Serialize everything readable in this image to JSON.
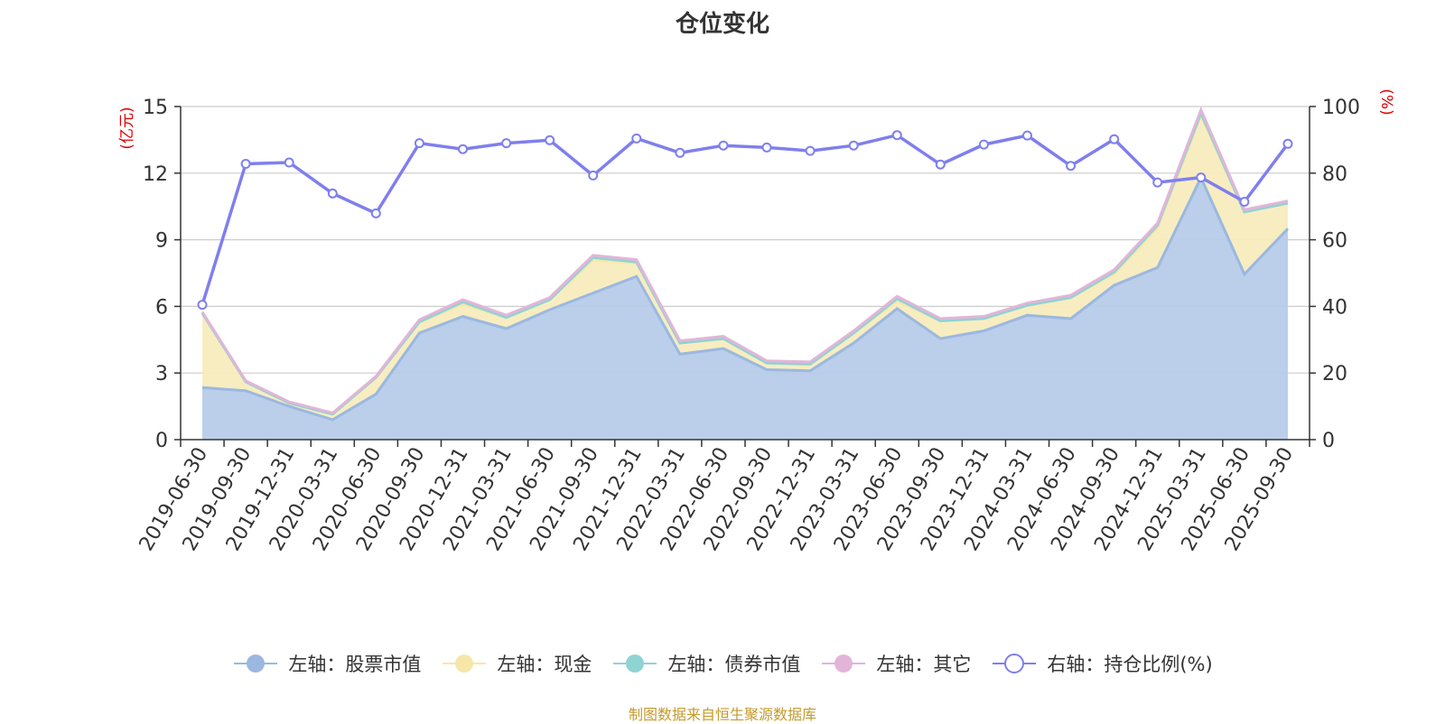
{
  "chart_data": {
    "type": "area",
    "title": "仓位变化",
    "left_axis_label": "(亿元)",
    "right_axis_label": "(%)",
    "left_ylim": [
      0,
      15
    ],
    "left_ticks": [
      "0",
      "3",
      "6",
      "9",
      "12",
      "15"
    ],
    "right_ylim": [
      0,
      100
    ],
    "right_ticks": [
      "0",
      "20",
      "40",
      "60",
      "80",
      "100"
    ],
    "grid": true,
    "legend_position": "bottom",
    "categories": [
      "2019-06-30",
      "2019-09-30",
      "2019-12-31",
      "2020-03-31",
      "2020-06-30",
      "2020-09-30",
      "2020-12-31",
      "2021-03-31",
      "2021-06-30",
      "2021-09-30",
      "2021-12-31",
      "2022-03-31",
      "2022-06-30",
      "2022-09-30",
      "2022-12-31",
      "2023-03-31",
      "2023-06-30",
      "2023-09-30",
      "2023-12-31",
      "2024-03-31",
      "2024-06-30",
      "2024-09-30",
      "2024-12-31",
      "2025-03-31",
      "2025-06-30",
      "2025-09-30"
    ],
    "series": [
      {
        "name": "左轴：股票市值",
        "axis": "left",
        "kind": "area",
        "color": "#9bb8e0",
        "fill": "#b7cbe9",
        "values": [
          2.35,
          2.2,
          1.5,
          0.9,
          2.05,
          4.8,
          5.55,
          5.0,
          5.85,
          6.6,
          7.35,
          3.85,
          4.1,
          3.15,
          3.1,
          4.35,
          5.9,
          4.55,
          4.9,
          5.6,
          5.45,
          6.95,
          7.75,
          11.8,
          7.45,
          9.5
        ]
      },
      {
        "name": "左轴：现金",
        "axis": "left",
        "kind": "area",
        "color": "#f6e7a8",
        "fill": "#f8ecbd",
        "values": [
          3.35,
          0.4,
          0.15,
          0.25,
          0.75,
          0.5,
          0.55,
          0.5,
          0.45,
          1.5,
          0.6,
          0.5,
          0.45,
          0.3,
          0.3,
          0.45,
          0.35,
          0.8,
          0.55,
          0.45,
          0.95,
          0.5,
          1.8,
          2.8,
          2.8,
          1.15
        ]
      },
      {
        "name": "左轴：债券市值",
        "axis": "left",
        "kind": "area",
        "color": "#8fd3d3",
        "fill": "#a6ddda",
        "values": [
          0.0,
          0.0,
          0.0,
          0.0,
          0.0,
          0.0,
          0.1,
          0.0,
          0.0,
          0.1,
          0.05,
          0.0,
          0.0,
          0.0,
          0.0,
          0.0,
          0.1,
          0.0,
          0.0,
          0.0,
          0.0,
          0.1,
          0.1,
          0.1,
          0.0,
          0.0
        ]
      },
      {
        "name": "左轴：其它",
        "axis": "left",
        "kind": "area",
        "color": "#e2b5d8",
        "fill": "#e9c4e1",
        "values": [
          0.05,
          0.05,
          0.05,
          0.05,
          0.05,
          0.1,
          0.1,
          0.1,
          0.1,
          0.1,
          0.1,
          0.1,
          0.1,
          0.1,
          0.1,
          0.1,
          0.1,
          0.1,
          0.1,
          0.1,
          0.1,
          0.1,
          0.1,
          0.15,
          0.1,
          0.1
        ]
      },
      {
        "name": "右轴：持仓比例(%)",
        "axis": "right",
        "kind": "line",
        "color": "#7f7fee",
        "values": [
          40.5,
          82.8,
          83.2,
          73.9,
          67.9,
          89.0,
          87.2,
          89.0,
          89.9,
          79.3,
          90.4,
          86.1,
          88.3,
          87.7,
          86.7,
          88.3,
          91.4,
          82.6,
          88.6,
          91.3,
          82.2,
          90.2,
          77.2,
          78.7,
          71.4,
          88.8
        ]
      }
    ]
  },
  "source_text": "制图数据来自恒生聚源数据库"
}
